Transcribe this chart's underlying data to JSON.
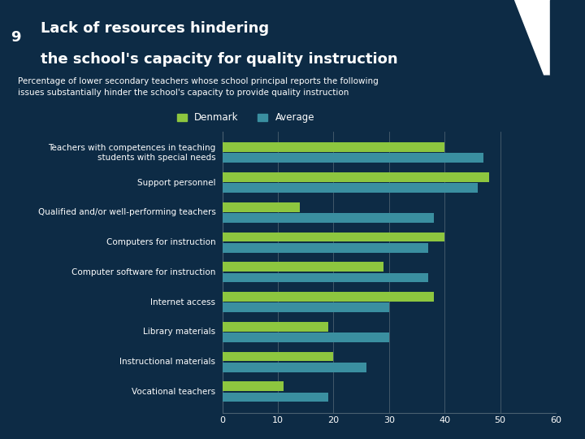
{
  "title_number": "9",
  "title_line1": "Lack of resources hindering",
  "title_line2": "the school's capacity for quality instruction",
  "subtitle": "Percentage of lower secondary teachers whose school principal reports the following\nissues substantially hinder the school's capacity to provide quality instruction",
  "categories": [
    "Teachers with competences in teaching\nstudents with special needs",
    "Support personnel",
    "Qualified and/or well-performing teachers",
    "Computers for instruction",
    "Computer software for instruction",
    "Internet access",
    "Library materials",
    "Instructional materials",
    "Vocational teachers"
  ],
  "denmark_values": [
    40,
    48,
    14,
    40,
    29,
    38,
    19,
    20,
    11
  ],
  "average_values": [
    47,
    46,
    38,
    37,
    37,
    30,
    30,
    26,
    19
  ],
  "denmark_color": "#8dc63f",
  "average_color": "#3a8fa0",
  "background_color": "#0d2b45",
  "title_bg_color": "#8b2020",
  "text_color": "#ffffff",
  "grid_color": "#4a6070",
  "xlim": [
    0,
    60
  ],
  "xticks": [
    0,
    10,
    20,
    30,
    40,
    50,
    60
  ],
  "bar_height": 0.32,
  "legend_denmark": "Denmark",
  "legend_average": "Average"
}
